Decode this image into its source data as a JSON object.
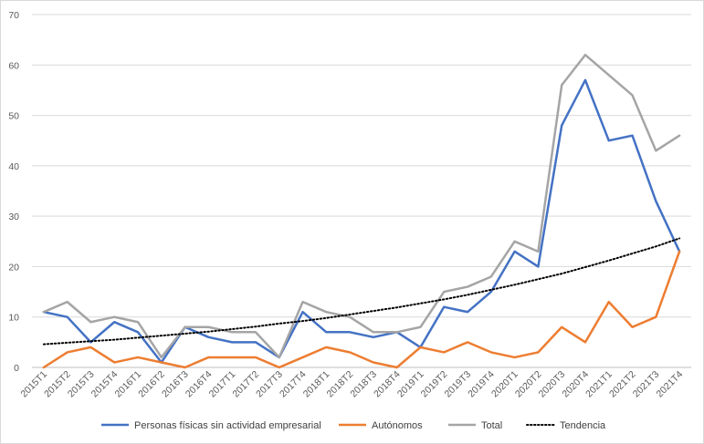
{
  "chart_data": {
    "type": "line",
    "title": "",
    "xlabel": "",
    "ylabel": "",
    "ylim": [
      0,
      70
    ],
    "yticks": [
      0,
      10,
      20,
      30,
      40,
      50,
      60,
      70
    ],
    "grid": "horizontal",
    "legend_position": "bottom",
    "categories": [
      "2015T1",
      "2015T2",
      "2015T3",
      "2015T4",
      "2016T1",
      "2016T2",
      "2016T3",
      "2016T4",
      "2017T1",
      "2017T2",
      "2017T3",
      "2017T4",
      "2018T1",
      "2018T2",
      "2018T3",
      "2018T4",
      "2019T1",
      "2019T2",
      "2019T3",
      "2019T4",
      "2020T1",
      "2020T2",
      "2020T3",
      "2020T4",
      "2021T1",
      "2021T2",
      "2021T3",
      "2021T4"
    ],
    "series": [
      {
        "name": "Personas físicas sin actividad empresarial",
        "color": "#4472c4",
        "style": "solid",
        "values": [
          11,
          10,
          5,
          9,
          7,
          1,
          8,
          6,
          5,
          5,
          2,
          11,
          7,
          7,
          6,
          7,
          4,
          12,
          11,
          15,
          23,
          20,
          48,
          57,
          45,
          46,
          33,
          23
        ]
      },
      {
        "name": "Autónomos",
        "color": "#ed7d31",
        "style": "solid",
        "values": [
          0,
          3,
          4,
          1,
          2,
          1,
          0,
          2,
          2,
          2,
          0,
          2,
          4,
          3,
          1,
          0,
          4,
          3,
          5,
          3,
          2,
          3,
          8,
          5,
          13,
          8,
          10,
          23
        ]
      },
      {
        "name": "Total",
        "color": "#a5a5a5",
        "style": "solid",
        "values": [
          11,
          13,
          9,
          10,
          9,
          2,
          8,
          8,
          7,
          7,
          2,
          13,
          11,
          10,
          7,
          7,
          8,
          15,
          16,
          18,
          25,
          23,
          56,
          62,
          58,
          54,
          43,
          46
        ]
      },
      {
        "name": "Tendencia",
        "color": "#000000",
        "style": "dotted",
        "values": [
          4.6,
          4.9,
          5.2,
          5.5,
          5.9,
          6.3,
          6.7,
          7.1,
          7.6,
          8.1,
          8.7,
          9.2,
          9.8,
          10.5,
          11.2,
          11.9,
          12.7,
          13.5,
          14.4,
          15.4,
          16.4,
          17.5,
          18.6,
          19.9,
          21.2,
          22.6,
          24.0,
          25.6
        ]
      }
    ]
  }
}
